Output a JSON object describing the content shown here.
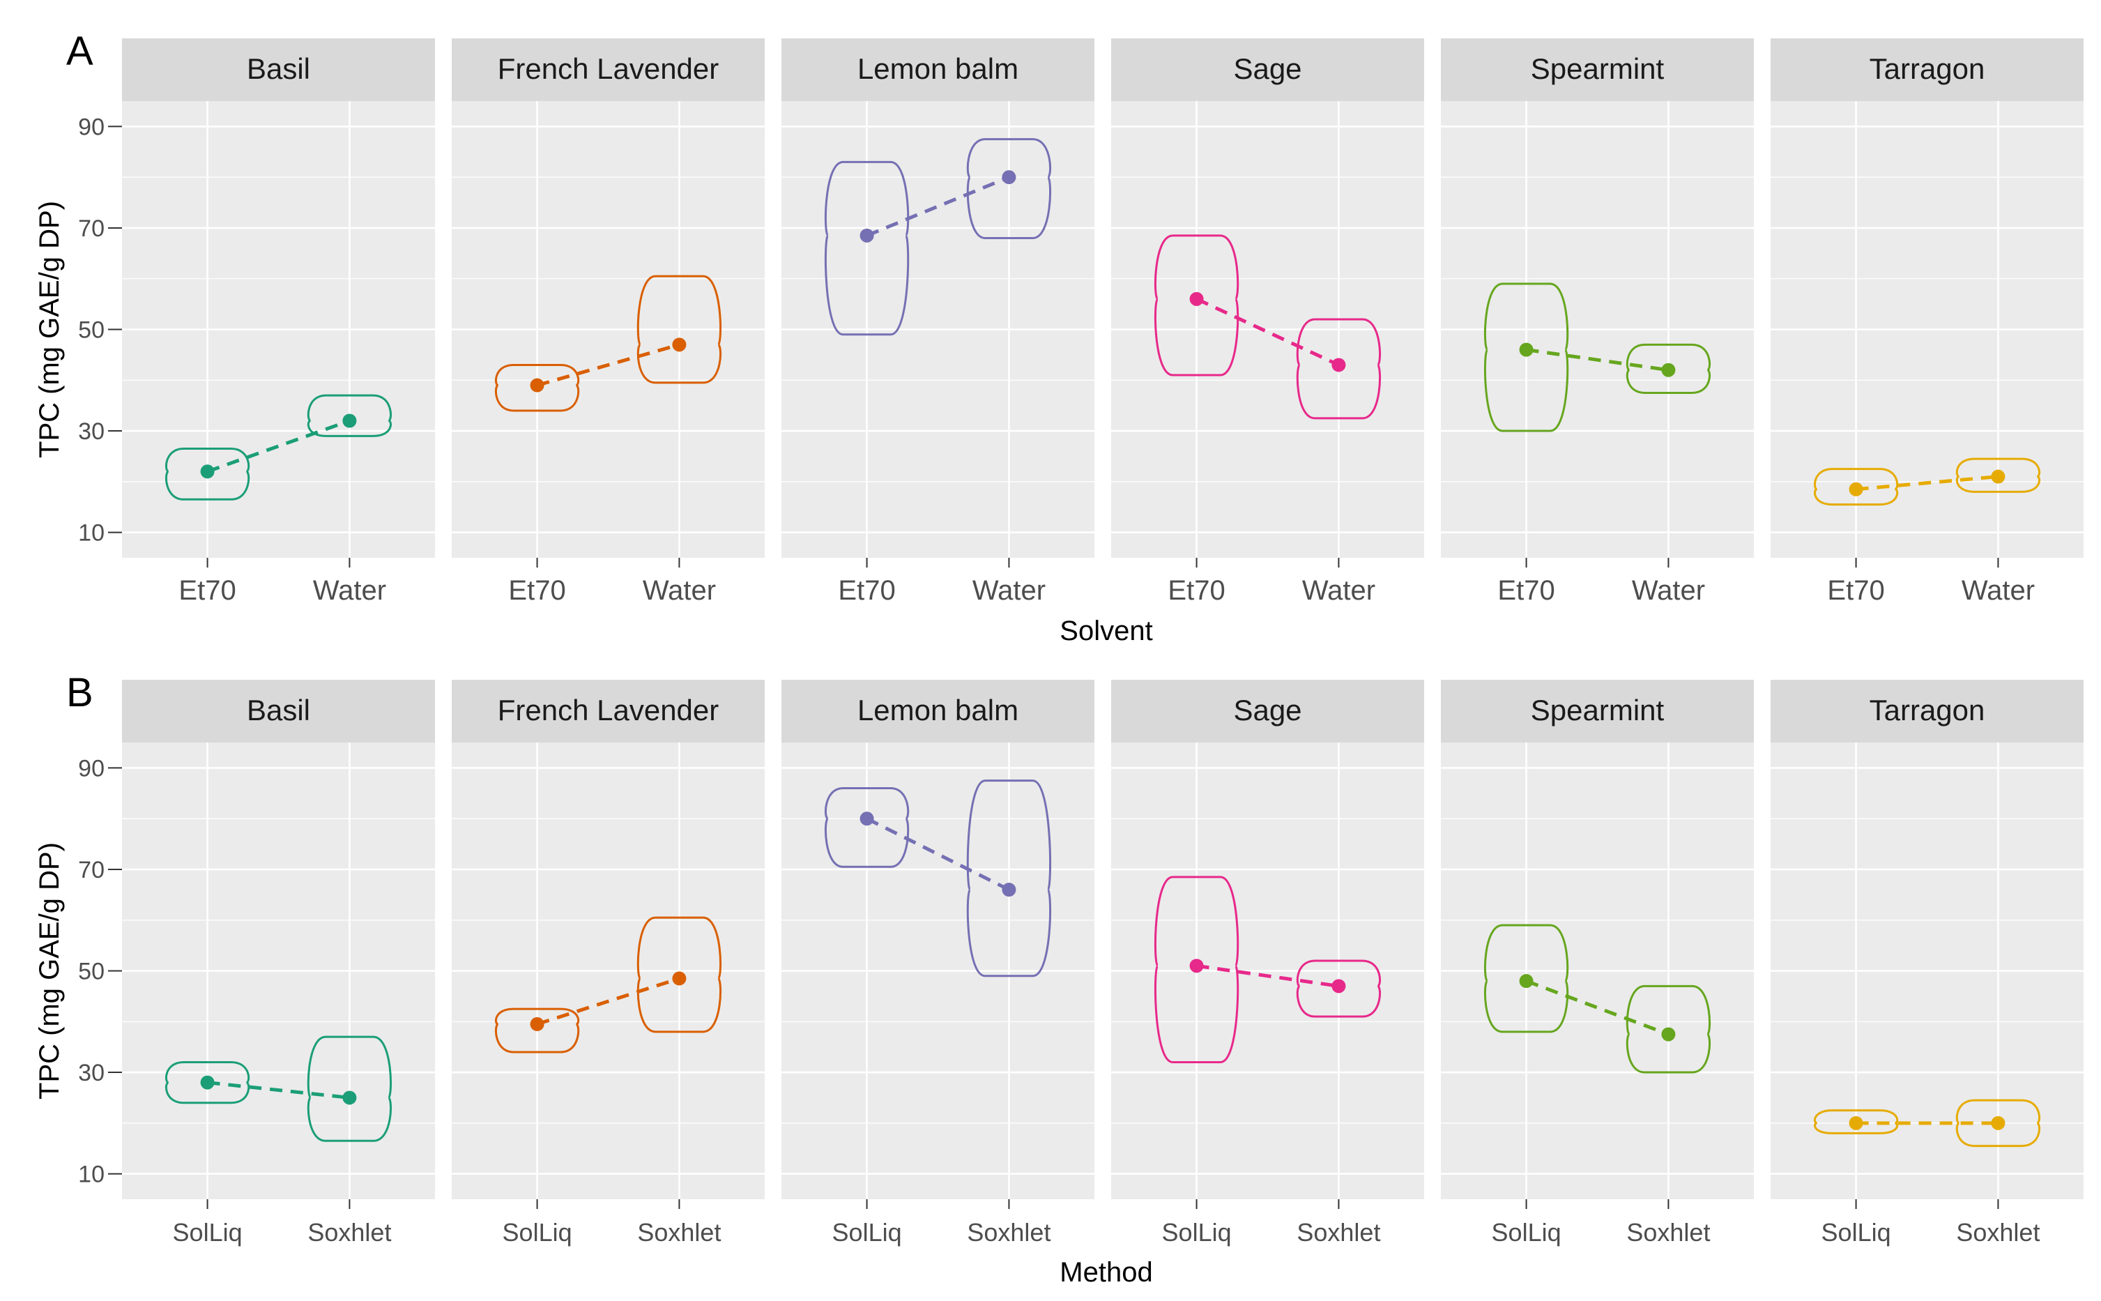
{
  "chart_data": [
    {
      "panel_label": "A",
      "type": "violin",
      "xlabel": "Solvent",
      "ylabel": "TPC (mg GAE/g DP)",
      "categories": [
        "Et70",
        "Water"
      ],
      "ylim": [
        5,
        95
      ],
      "yticks": [
        10,
        30,
        50,
        70,
        90
      ],
      "facets": [
        {
          "name": "Basil",
          "color": "#1b9e77",
          "groups": [
            {
              "x": "Et70",
              "mean": 22,
              "min": 16.5,
              "max": 26.5
            },
            {
              "x": "Water",
              "mean": 32,
              "min": 29,
              "max": 37
            }
          ]
        },
        {
          "name": "French Lavender",
          "color": "#d95f02",
          "groups": [
            {
              "x": "Et70",
              "mean": 39,
              "min": 34,
              "max": 43
            },
            {
              "x": "Water",
              "mean": 47,
              "min": 39.5,
              "max": 60.5
            }
          ]
        },
        {
          "name": "Lemon balm",
          "color": "#7570b3",
          "groups": [
            {
              "x": "Et70",
              "mean": 68.5,
              "min": 49,
              "max": 83
            },
            {
              "x": "Water",
              "mean": 80,
              "min": 68,
              "max": 87.5
            }
          ]
        },
        {
          "name": "Sage",
          "color": "#e7298a",
          "groups": [
            {
              "x": "Et70",
              "mean": 56,
              "min": 41,
              "max": 68.5
            },
            {
              "x": "Water",
              "mean": 43,
              "min": 32.5,
              "max": 52
            }
          ]
        },
        {
          "name": "Spearmint",
          "color": "#66a61e",
          "groups": [
            {
              "x": "Et70",
              "mean": 46,
              "min": 30,
              "max": 59
            },
            {
              "x": "Water",
              "mean": 42,
              "min": 37.5,
              "max": 47
            }
          ]
        },
        {
          "name": "Tarragon",
          "color": "#e6ab02",
          "groups": [
            {
              "x": "Et70",
              "mean": 18.5,
              "min": 15.5,
              "max": 22.5
            },
            {
              "x": "Water",
              "mean": 21,
              "min": 18,
              "max": 24.5
            }
          ]
        }
      ]
    },
    {
      "panel_label": "B",
      "type": "violin",
      "xlabel": "Method",
      "ylabel": "TPC (mg GAE/g DP)",
      "categories": [
        "SolLiq",
        "Soxhlet"
      ],
      "ylim": [
        5,
        95
      ],
      "yticks": [
        10,
        30,
        50,
        70,
        90
      ],
      "facets": [
        {
          "name": "Basil",
          "color": "#1b9e77",
          "groups": [
            {
              "x": "SolLiq",
              "mean": 28,
              "min": 24,
              "max": 32
            },
            {
              "x": "Soxhlet",
              "mean": 25,
              "min": 16.5,
              "max": 37
            }
          ]
        },
        {
          "name": "French Lavender",
          "color": "#d95f02",
          "groups": [
            {
              "x": "SolLiq",
              "mean": 39.5,
              "min": 34,
              "max": 42.5
            },
            {
              "x": "Soxhlet",
              "mean": 48.5,
              "min": 38,
              "max": 60.5
            }
          ]
        },
        {
          "name": "Lemon balm",
          "color": "#7570b3",
          "groups": [
            {
              "x": "SolLiq",
              "mean": 80,
              "min": 70.5,
              "max": 86
            },
            {
              "x": "Soxhlet",
              "mean": 66,
              "min": 49,
              "max": 87.5
            }
          ]
        },
        {
          "name": "Sage",
          "color": "#e7298a",
          "groups": [
            {
              "x": "SolLiq",
              "mean": 51,
              "min": 32,
              "max": 68.5
            },
            {
              "x": "Soxhlet",
              "mean": 47,
              "min": 41,
              "max": 52
            }
          ]
        },
        {
          "name": "Spearmint",
          "color": "#66a61e",
          "groups": [
            {
              "x": "SolLiq",
              "mean": 48,
              "min": 38,
              "max": 59
            },
            {
              "x": "Soxhlet",
              "mean": 37.5,
              "min": 30,
              "max": 47
            }
          ]
        },
        {
          "name": "Tarragon",
          "color": "#e6ab02",
          "groups": [
            {
              "x": "SolLiq",
              "mean": 20,
              "min": 18,
              "max": 22.5
            },
            {
              "x": "Soxhlet",
              "mean": 20,
              "min": 15.5,
              "max": 24.5
            }
          ]
        }
      ]
    }
  ],
  "style": {
    "panel_background": "#ebebeb",
    "strip_background": "#d9d9d9",
    "grid_color": "#ffffff",
    "text_color": "#000000",
    "tick_text_color": "#4d4d4d"
  }
}
